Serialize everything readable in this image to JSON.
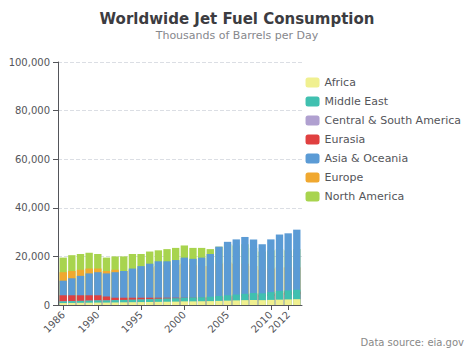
{
  "chart_data": {
    "type": "bar",
    "stacked": true,
    "title": "Worldwide Jet Fuel Consumption",
    "subtitle": "Thousands of Barrels per Day",
    "annotations": [
      "Data source: eia.gov"
    ],
    "x": [
      1986,
      1987,
      1988,
      1989,
      1990,
      1991,
      1992,
      1993,
      1994,
      1995,
      1996,
      1997,
      1998,
      1999,
      2000,
      2001,
      2002,
      2003,
      2004,
      2005,
      2006,
      2007,
      2008,
      2009,
      2010,
      2011,
      2012,
      2013
    ],
    "xlim": [
      1985.4,
      2013.6
    ],
    "xticks": [
      1986,
      1990,
      1995,
      2000,
      2005,
      2010,
      2012
    ],
    "ylim": [
      0,
      100000
    ],
    "yticks": [
      0,
      {
        "value": 20000,
        "label": "20,000"
      },
      {
        "value": 40000,
        "label": "40,000"
      },
      {
        "value": 60000,
        "label": "60,000"
      },
      {
        "value": 80000,
        "label": "80,000"
      },
      {
        "value": 100000,
        "label": "100,000"
      }
    ],
    "grid": true,
    "legend": "right",
    "series": [
      {
        "name": "North America",
        "color": "#a8d44e",
        "values": [
          19500,
          20500,
          21000,
          21500,
          21000,
          19500,
          20000,
          20000,
          21000,
          21000,
          22000,
          22500,
          23000,
          23500,
          24500,
          23500,
          23500,
          23000,
          24000,
          25000,
          24500,
          25000,
          23500,
          22000,
          22500,
          23000,
          22500,
          23000
        ]
      },
      {
        "name": "Europe",
        "color": "#f0a830",
        "values": [
          13500,
          14000,
          14500,
          15000,
          15000,
          14000,
          14500,
          14000,
          14500,
          15000,
          15500,
          16000,
          16500,
          16500,
          17000,
          16500,
          16000,
          16000,
          17000,
          17500,
          17000,
          17000,
          16000,
          14500,
          15000,
          15500,
          15500,
          15500
        ]
      },
      {
        "name": "Asia & Oceania",
        "color": "#5b9bd5",
        "values": [
          10000,
          11000,
          12000,
          13000,
          13500,
          13000,
          13500,
          14000,
          15000,
          16000,
          17000,
          18000,
          18000,
          18500,
          19500,
          19000,
          19500,
          21000,
          24000,
          26000,
          27000,
          28000,
          27000,
          25000,
          27000,
          29000,
          29500,
          31000
        ]
      },
      {
        "name": "Eurasia",
        "color": "#e04040",
        "values": [
          4000,
          4000,
          4000,
          4000,
          4000,
          3500,
          3000,
          3000,
          3000,
          3000,
          3000,
          3000,
          3000,
          3000,
          3000,
          3000,
          3000,
          3000,
          3000,
          3500,
          3500,
          4000,
          4500,
          4000,
          4500,
          5000,
          5500,
          5500
        ]
      },
      {
        "name": "Central & South America",
        "color": "#b0a0d0",
        "values": [
          1500,
          1600,
          1700,
          1800,
          1900,
          1900,
          2000,
          2000,
          2100,
          2200,
          2300,
          2400,
          2500,
          2500,
          2600,
          2600,
          2600,
          2700,
          2900,
          3100,
          3300,
          3500,
          3600,
          3500,
          3700,
          4000,
          4200,
          4400
        ]
      },
      {
        "name": "Middle East",
        "color": "#40c0b0",
        "values": [
          1500,
          1600,
          1700,
          1800,
          1900,
          1900,
          2000,
          2100,
          2200,
          2300,
          2400,
          2600,
          2700,
          2800,
          3000,
          3100,
          3200,
          3400,
          3700,
          4000,
          4300,
          4600,
          4900,
          4800,
          5300,
          5800,
          6000,
          6300
        ]
      },
      {
        "name": "Africa",
        "color": "#f0f090",
        "values": [
          800,
          850,
          900,
          950,
          1000,
          1000,
          1050,
          1100,
          1150,
          1200,
          1250,
          1300,
          1350,
          1400,
          1500,
          1500,
          1550,
          1600,
          1700,
          1800,
          1900,
          2000,
          2100,
          2000,
          2100,
          2200,
          2300,
          2400
        ]
      }
    ]
  }
}
